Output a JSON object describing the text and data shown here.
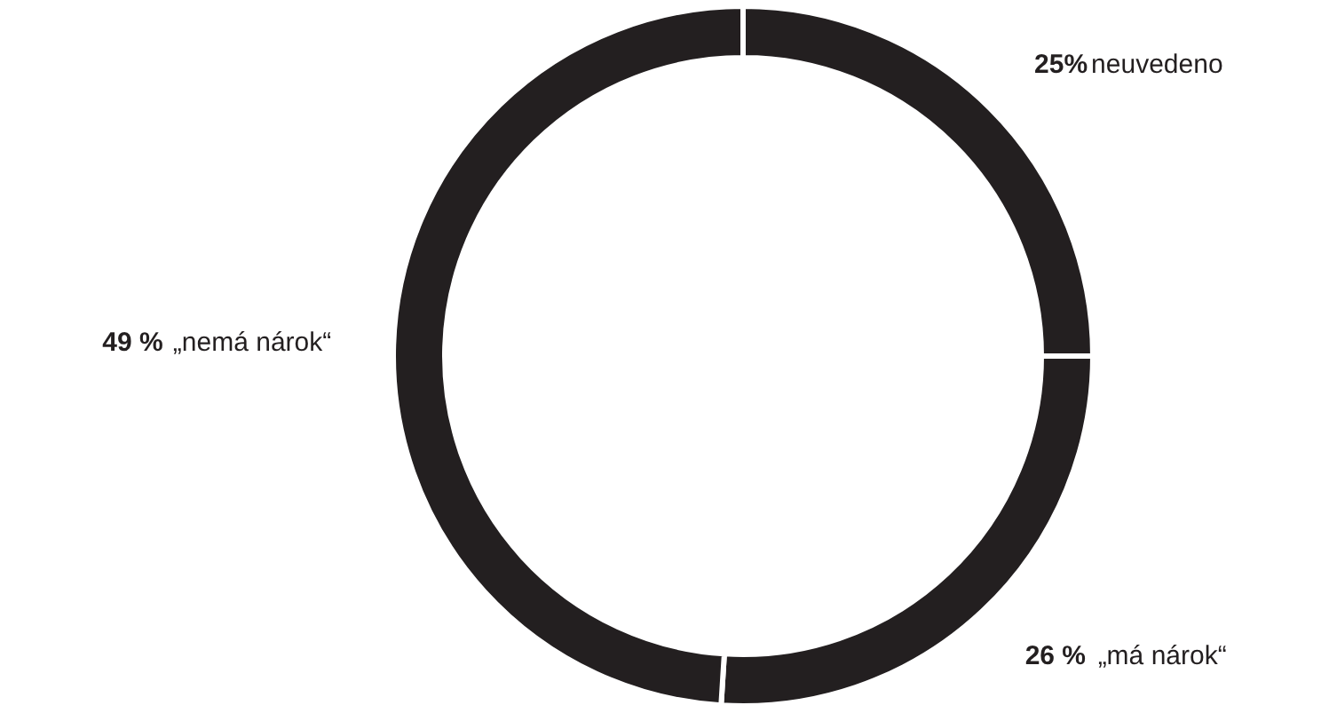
{
  "chart_data": {
    "type": "donut",
    "categories": [
      "neuvedeno",
      "„má nárok“",
      "„nemá nárok“"
    ],
    "values": [
      25,
      26,
      49
    ],
    "colors": [
      "#231f20",
      "#231f20",
      "#231f20"
    ],
    "value_labels": [
      "25%",
      "26 %",
      "49 %"
    ]
  }
}
